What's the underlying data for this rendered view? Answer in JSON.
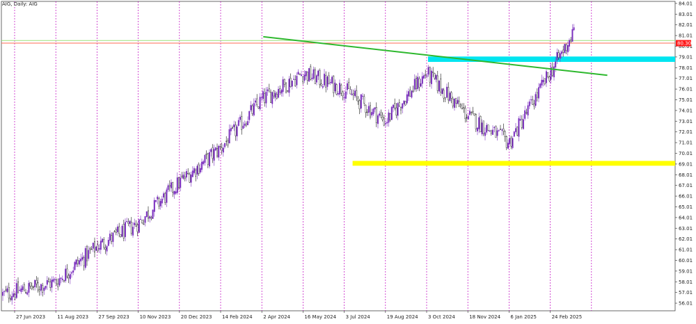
{
  "symbol_title": "AIG, Daily:  AIG",
  "chart_data": {
    "type": "candlestick",
    "title": "AIG, Daily:  AIG",
    "ylim": [
      55.3,
      84.2
    ],
    "price_ticks": [
      "84.01",
      "83.01",
      "82.01",
      "81.01",
      "80.01",
      "79.01",
      "78.01",
      "77.01",
      "76.01",
      "75.01",
      "74.01",
      "73.01",
      "72.01",
      "71.01",
      "70.01",
      "69.01",
      "68.01",
      "67.01",
      "66.01",
      "65.01",
      "64.01",
      "63.01",
      "62.01",
      "61.01",
      "60.01",
      "59.01",
      "58.01",
      "57.01",
      "56.01"
    ],
    "date_ticks": [
      "27 Jun 2023",
      "11 Aug 2023",
      "27 Sep 2023",
      "10 Nov 2023",
      "20 Dec 2023",
      "14 Feb 2024",
      "2 Apr 2024",
      "16 May 2024",
      "3 Jul 2024",
      "19 Aug 2024",
      "3 Oct 2024",
      "18 Nov 2024",
      "6 Jan 2025",
      "24 Feb 2025"
    ],
    "current_price_label": "80.30",
    "current_price": 80.3,
    "horizontal_lines": [
      {
        "price": 80.55,
        "color": "#9be07a"
      },
      {
        "price": 80.3,
        "color": "#ff6a50"
      }
    ],
    "zones": [
      {
        "from_date_index": 10,
        "price_low": 78.55,
        "price_high": 79.05,
        "color": "#00e5f0"
      },
      {
        "from_date_index": 8,
        "price_low": 68.85,
        "price_high": 69.3,
        "color": "#ffff00"
      }
    ],
    "trendline": {
      "start": {
        "date": "2 Apr 2024",
        "price": 80.9
      },
      "end": {
        "date": "24 Feb 2025",
        "price": 77.3
      },
      "color": "#2db82d"
    },
    "close_path": [
      {
        "date": "27 Jun 2023",
        "price": 56.8
      },
      {
        "date": "11 Aug 2023",
        "price": 58.0
      },
      {
        "date": "27 Sep 2023",
        "price": 61.3
      },
      {
        "date": "10 Nov 2023",
        "price": 63.5
      },
      {
        "date": "20 Dec 2023",
        "price": 67.3
      },
      {
        "date": "14 Feb 2024",
        "price": 70.5
      },
      {
        "date": "2 Apr 2024",
        "price": 75.0
      },
      {
        "date": "16 May 2024",
        "price": 77.5
      },
      {
        "date": "3 Jul 2024",
        "price": 76.0
      },
      {
        "date": "19 Aug 2024",
        "price": 73.0
      },
      {
        "date": "3 Oct 2024",
        "price": 77.5
      },
      {
        "date": "18 Nov 2024",
        "price": 73.5
      },
      {
        "date": "6 Jan 2025",
        "price": 71.0
      },
      {
        "date": "24 Feb 2025",
        "price": 81.5
      }
    ],
    "grid": {
      "vertical_dashed": true,
      "vertical_color": "#c000c0",
      "horizontal": false
    },
    "candle_colors": {
      "up": "#7b2fbe",
      "down": "#111111"
    }
  }
}
